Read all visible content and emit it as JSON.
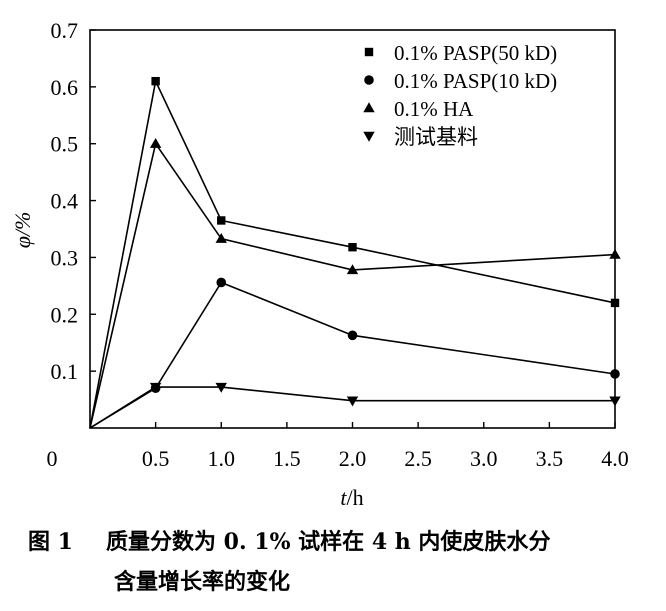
{
  "chart_data": {
    "type": "line",
    "x": [
      0,
      0.5,
      1.0,
      2.0,
      4.0
    ],
    "xticks": [
      "0",
      "0.5",
      "1.0",
      "1.5",
      "2.0",
      "2.5",
      "3.0",
      "3.5",
      "4.0"
    ],
    "xtick_values": [
      0,
      0.5,
      1.0,
      1.5,
      2.0,
      2.5,
      3.0,
      3.5,
      4.0
    ],
    "yticks": [
      "0.1",
      "0.2",
      "0.3",
      "0.4",
      "0.5",
      "0.6",
      "0.7"
    ],
    "ytick_values": [
      0.1,
      0.2,
      0.3,
      0.4,
      0.5,
      0.6,
      0.7
    ],
    "xlim": [
      0,
      4.0
    ],
    "ylim": [
      0,
      0.7
    ],
    "xlabel_var": "t",
    "xlabel_unit": "/h",
    "ylabel": "φ/%",
    "legend_position": "top-right",
    "series": [
      {
        "name": "0.1% PASP(50 kD)",
        "marker": "square",
        "values": [
          0,
          0.61,
          0.365,
          0.318,
          0.22
        ]
      },
      {
        "name": "0.1% PASP(10 kD)",
        "marker": "circle",
        "values": [
          0,
          0.07,
          0.256,
          0.163,
          0.095
        ]
      },
      {
        "name": "0.1% HA",
        "marker": "triangle-up",
        "values": [
          0,
          0.5,
          0.333,
          0.278,
          0.305
        ]
      },
      {
        "name": "测试基料",
        "marker": "triangle-down",
        "values": [
          0,
          0.072,
          0.072,
          0.048,
          0.048
        ]
      }
    ]
  },
  "caption": {
    "figure_number": "图 1",
    "line1": "质量分数为 0. 1% 试样在 4 h 内使皮肤水分",
    "line2": "含量增长率的变化"
  }
}
